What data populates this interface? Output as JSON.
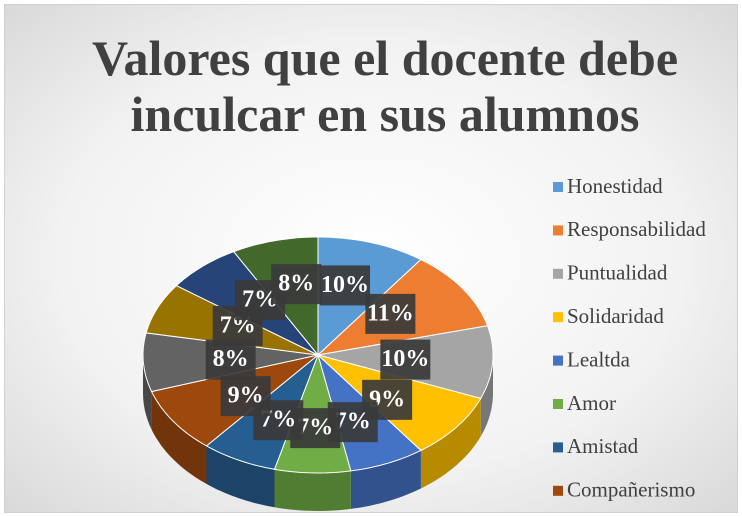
{
  "chart_data": {
    "type": "pie",
    "title": "Valores que el docente debe inculcar en sus alumnos",
    "categories": [
      "Honestidad",
      "Responsabilidad",
      "Puntualidad",
      "Solidaridad",
      "Lealtda",
      "Amor",
      "Amistad",
      "Compañerismo",
      null,
      null,
      null,
      null
    ],
    "values": [
      10,
      11,
      10,
      9,
      7,
      7,
      7,
      9,
      8,
      7,
      7,
      8
    ],
    "value_labels": [
      "10%",
      "11%",
      "10%",
      "9%",
      "7%",
      "7%",
      "7%",
      "9%",
      "8%",
      "7%",
      "7%",
      "8%"
    ],
    "colors": [
      "#5b9bd5",
      "#ed7d31",
      "#a5a5a5",
      "#ffc000",
      "#4472c4",
      "#70ad47",
      "#255e91",
      "#9e480e",
      "#636363",
      "#997300",
      "#264478",
      "#43682b"
    ],
    "legend": "right"
  }
}
